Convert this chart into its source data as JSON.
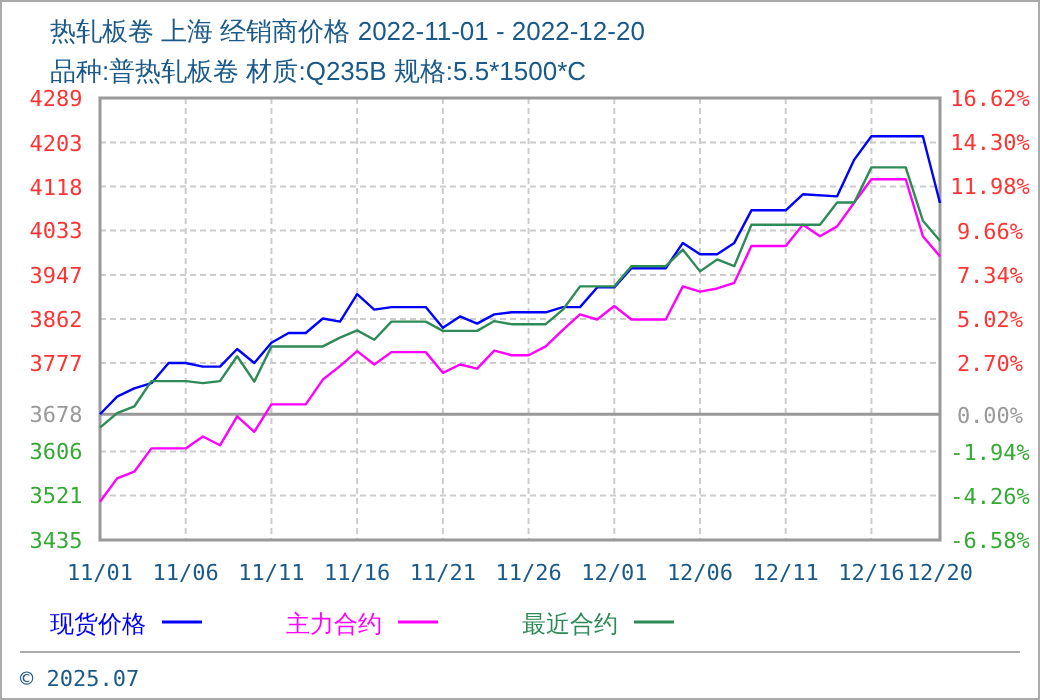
{
  "chart_data": {
    "type": "line",
    "title": "热轧板卷 上海 经销商价格 2022-11-01 - 2022-12-20",
    "subtitle": "品种:普热轧板卷 材质:Q235B 规格:5.5*1500*C",
    "annotations": [
      "© 2025.07"
    ],
    "xlim": [
      "2022-11-01",
      "2022-12-20"
    ],
    "xticks": [
      {
        "value": "2022-11-01",
        "label": "11/01"
      },
      {
        "value": "2022-11-06",
        "label": "11/06"
      },
      {
        "value": "2022-11-11",
        "label": "11/11"
      },
      {
        "value": "2022-11-16",
        "label": "11/16"
      },
      {
        "value": "2022-11-21",
        "label": "11/21"
      },
      {
        "value": "2022-11-26",
        "label": "11/26"
      },
      {
        "value": "2022-12-01",
        "label": "12/01"
      },
      {
        "value": "2022-12-06",
        "label": "12/06"
      },
      {
        "value": "2022-12-11",
        "label": "12/11"
      },
      {
        "value": "2022-12-16",
        "label": "12/16"
      },
      {
        "value": "2022-12-20",
        "label": "12/20"
      }
    ],
    "ylim": [
      3435,
      4289
    ],
    "yticks": [
      4289,
      4203,
      4118,
      4033,
      3947,
      3862,
      3777,
      3678,
      3606,
      3521,
      3435
    ],
    "y2lim": [
      -6.58,
      16.62
    ],
    "y2ticks": [
      {
        "value": 16.62,
        "label": "16.62%"
      },
      {
        "value": 14.3,
        "label": "14.30%"
      },
      {
        "value": 11.98,
        "label": "11.98%"
      },
      {
        "value": 9.66,
        "label": "9.66%"
      },
      {
        "value": 7.34,
        "label": "7.34%"
      },
      {
        "value": 5.02,
        "label": "5.02%"
      },
      {
        "value": 2.7,
        "label": "2.70%"
      },
      {
        "value": 0,
        "label": "0.00%"
      },
      {
        "value": -1.94,
        "label": "-1.94%"
      },
      {
        "value": -4.26,
        "label": "-4.26%"
      },
      {
        "value": -6.58,
        "label": "-6.58%"
      }
    ],
    "ref_lines": [
      {
        "axis": "y",
        "value": 3678,
        "color": "#999999"
      }
    ],
    "grid": true,
    "legend": "bottom",
    "series": [
      {
        "name": "现货价格",
        "color": "#0000ff",
        "x": [
          "2022-11-01",
          "2022-11-02",
          "2022-11-03",
          "2022-11-04",
          "2022-11-05",
          "2022-11-06",
          "2022-11-07",
          "2022-11-08",
          "2022-11-09",
          "2022-11-10",
          "2022-11-11",
          "2022-11-12",
          "2022-11-13",
          "2022-11-14",
          "2022-11-15",
          "2022-11-16",
          "2022-11-17",
          "2022-11-18",
          "2022-11-20",
          "2022-11-21",
          "2022-11-22",
          "2022-11-23",
          "2022-11-24",
          "2022-11-25",
          "2022-11-27",
          "2022-11-28",
          "2022-11-29",
          "2022-11-30",
          "2022-12-01",
          "2022-12-02",
          "2022-12-04",
          "2022-12-05",
          "2022-12-06",
          "2022-12-07",
          "2022-12-08",
          "2022-12-09",
          "2022-12-11",
          "2022-12-12",
          "2022-12-14",
          "2022-12-15",
          "2022-12-16",
          "2022-12-19",
          "2022-12-20"
        ],
        "values": [
          3678,
          3712,
          3728,
          3738,
          3777,
          3777,
          3770,
          3770,
          3804,
          3777,
          3816,
          3835,
          3835,
          3863,
          3857,
          3910,
          3880,
          3885,
          3885,
          3845,
          3867,
          3853,
          3871,
          3875,
          3875,
          3885,
          3885,
          3923,
          3923,
          3960,
          3960,
          4009,
          3987,
          3987,
          4009,
          4072,
          4072,
          4103,
          4099,
          4170,
          4215,
          4215,
          4086
        ]
      },
      {
        "name": "主力合约",
        "color": "#ff00ff",
        "x": [
          "2022-11-01",
          "2022-11-02",
          "2022-11-03",
          "2022-11-04",
          "2022-11-06",
          "2022-11-07",
          "2022-11-08",
          "2022-11-09",
          "2022-11-10",
          "2022-11-11",
          "2022-11-13",
          "2022-11-14",
          "2022-11-15",
          "2022-11-16",
          "2022-11-17",
          "2022-11-18",
          "2022-11-20",
          "2022-11-21",
          "2022-11-22",
          "2022-11-23",
          "2022-11-24",
          "2022-11-25",
          "2022-11-26",
          "2022-11-27",
          "2022-11-28",
          "2022-11-29",
          "2022-11-30",
          "2022-12-01",
          "2022-12-02",
          "2022-12-04",
          "2022-12-05",
          "2022-12-06",
          "2022-12-07",
          "2022-12-08",
          "2022-12-09",
          "2022-12-11",
          "2022-12-12",
          "2022-12-13",
          "2022-12-14",
          "2022-12-15",
          "2022-12-16",
          "2022-12-18",
          "2022-12-19",
          "2022-12-20"
        ],
        "values": [
          3509,
          3554,
          3567,
          3612,
          3612,
          3635,
          3618,
          3674,
          3644,
          3697,
          3697,
          3745,
          3771,
          3800,
          3774,
          3798,
          3798,
          3758,
          3774,
          3766,
          3801,
          3792,
          3792,
          3809,
          3841,
          3871,
          3861,
          3887,
          3861,
          3861,
          3925,
          3915,
          3921,
          3932,
          4003,
          4003,
          4044,
          4022,
          4041,
          4087,
          4132,
          4132,
          4022,
          3983
        ]
      },
      {
        "name": "最近合约",
        "color": "#2e8b57",
        "x": [
          "2022-11-01",
          "2022-11-02",
          "2022-11-03",
          "2022-11-04",
          "2022-11-06",
          "2022-11-07",
          "2022-11-08",
          "2022-11-09",
          "2022-11-10",
          "2022-11-11",
          "2022-11-14",
          "2022-11-15",
          "2022-11-16",
          "2022-11-17",
          "2022-11-18",
          "2022-11-20",
          "2022-11-21",
          "2022-11-23",
          "2022-11-24",
          "2022-11-25",
          "2022-11-27",
          "2022-11-28",
          "2022-11-29",
          "2022-12-01",
          "2022-12-02",
          "2022-12-04",
          "2022-12-05",
          "2022-12-06",
          "2022-12-07",
          "2022-12-08",
          "2022-12-09",
          "2022-12-13",
          "2022-12-14",
          "2022-12-15",
          "2022-12-16",
          "2022-12-18",
          "2022-12-19",
          "2022-12-20"
        ],
        "values": [
          3652,
          3680,
          3693,
          3742,
          3742,
          3738,
          3742,
          3790,
          3741,
          3809,
          3809,
          3826,
          3840,
          3822,
          3857,
          3857,
          3839,
          3839,
          3858,
          3852,
          3852,
          3880,
          3925,
          3925,
          3964,
          3964,
          3996,
          3954,
          3977,
          3964,
          4044,
          4044,
          4087,
          4087,
          4155,
          4155,
          4052,
          4013
        ]
      }
    ]
  }
}
